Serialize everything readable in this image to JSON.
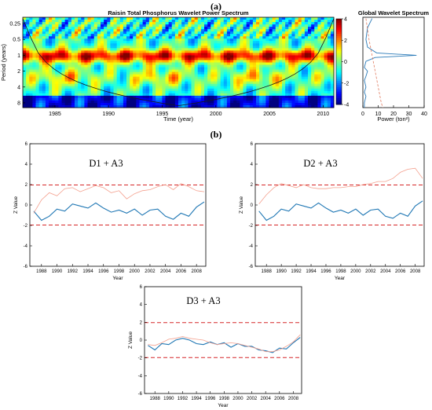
{
  "panel_labels": {
    "a": "(a)",
    "b": "(b)"
  },
  "chart_data": [
    {
      "type": "heatmap",
      "title": "Raisin Total Phosphorus Wavelet Power Spectrum",
      "xlabel": "Time (year)",
      "ylabel": "Period (years)",
      "xticks": [
        1985,
        1990,
        1995,
        2000,
        2005,
        2010
      ],
      "xlim": [
        1982,
        2011
      ],
      "yticks": [
        "0.25",
        "0.5",
        "1",
        "2",
        "4",
        "8"
      ],
      "ylim_log2": [
        -2.4,
        3.3
      ],
      "colorbar": {
        "ticks": [
          4,
          2,
          0,
          -2,
          -4
        ],
        "range": [
          -4,
          4
        ]
      }
    },
    {
      "type": "line",
      "title": "Global Wavelet Spectrum",
      "xlabel": "Power (ton²)",
      "xticks": [
        0,
        10,
        20,
        30,
        40
      ],
      "xlim": [
        0,
        40
      ],
      "series": [
        {
          "period": [
            0.2,
            0.3,
            0.5,
            0.7,
            0.9,
            1.0,
            1.1,
            1.3,
            1.7,
            2.0,
            2.5,
            3.0,
            4.0,
            5.0,
            6.0,
            8.0,
            10.0
          ],
          "power": [
            6,
            3,
            2,
            3,
            9,
            35,
            8,
            2,
            1,
            3,
            2,
            1,
            2,
            1,
            2,
            1,
            1
          ]
        },
        {
          "period": [
            0.2,
            0.5,
            1.0,
            2.0,
            4.0,
            8.0,
            10.0
          ],
          "power": [
            2,
            4,
            6,
            8,
            10,
            12,
            13
          ]
        }
      ]
    },
    {
      "type": "line",
      "title": "D1 + A3",
      "xlabel": "Year",
      "ylabel": "Z Value",
      "x": [
        1987,
        1988,
        1989,
        1990,
        1991,
        1992,
        1993,
        1994,
        1995,
        1996,
        1997,
        1998,
        1999,
        2000,
        2001,
        2002,
        2003,
        2004,
        2005,
        2006,
        2007,
        2008,
        2009
      ],
      "xticks": [
        1988,
        1990,
        1992,
        1994,
        1996,
        1998,
        2000,
        2002,
        2004,
        2006,
        2008
      ],
      "yticks": [
        6,
        4,
        2,
        0,
        -2,
        -4,
        -6
      ],
      "ylim": [
        -6,
        6
      ],
      "thresholds": [
        1.96,
        -1.96
      ],
      "series": [
        {
          "values": [
            -0.6,
            -1.5,
            -1.1,
            -0.4,
            -0.6,
            0.1,
            -0.1,
            -0.3,
            0.2,
            -0.3,
            -0.7,
            -0.5,
            -0.8,
            -0.4,
            -1.0,
            -0.5,
            -0.4,
            -1.1,
            -1.4,
            -0.8,
            -1.1,
            -0.2,
            0.3
          ]
        },
        {
          "values": [
            -0.8,
            0.5,
            1.2,
            0.9,
            1.6,
            1.7,
            1.3,
            1.6,
            1.9,
            1.7,
            1.2,
            1.4,
            0.6,
            1.1,
            1.4,
            1.5,
            1.8,
            2.0,
            1.5,
            2.1,
            1.8,
            1.4,
            1.3
          ]
        }
      ]
    },
    {
      "type": "line",
      "title": "D2 + A3",
      "xlabel": "Year",
      "ylabel": "Z Value",
      "x": [
        1987,
        1988,
        1989,
        1990,
        1991,
        1992,
        1993,
        1994,
        1995,
        1996,
        1997,
        1998,
        1999,
        2000,
        2001,
        2002,
        2003,
        2004,
        2005,
        2006,
        2007,
        2008,
        2009
      ],
      "xticks": [
        1988,
        1990,
        1992,
        1994,
        1996,
        1998,
        2000,
        2002,
        2004,
        2006,
        2008
      ],
      "yticks": [
        6,
        4,
        2,
        0,
        -2,
        -4,
        -6
      ],
      "ylim": [
        -6,
        6
      ],
      "thresholds": [
        1.96,
        -1.96
      ],
      "series": [
        {
          "values": [
            -0.6,
            -1.5,
            -1.1,
            -0.4,
            -0.6,
            0.1,
            -0.1,
            -0.3,
            0.2,
            -0.3,
            -0.7,
            -0.5,
            -0.8,
            -0.4,
            -1.0,
            -0.5,
            -0.4,
            -1.1,
            -1.3,
            -0.8,
            -1.1,
            -0.1,
            0.4
          ]
        },
        {
          "values": [
            0.1,
            1.0,
            1.7,
            2.1,
            1.9,
            1.7,
            2.0,
            1.7,
            1.6,
            1.6,
            1.7,
            1.7,
            1.8,
            1.8,
            2.0,
            2.1,
            2.3,
            2.3,
            2.6,
            3.2,
            3.5,
            3.6,
            2.6
          ]
        }
      ]
    },
    {
      "type": "line",
      "title": "D3 + A3",
      "xlabel": "Year",
      "ylabel": "Z Value",
      "x": [
        1987,
        1988,
        1989,
        1990,
        1991,
        1992,
        1993,
        1994,
        1995,
        1996,
        1997,
        1998,
        1999,
        2000,
        2001,
        2002,
        2003,
        2004,
        2005,
        2006,
        2007,
        2008,
        2009
      ],
      "xticks": [
        1988,
        1990,
        1992,
        1994,
        1996,
        1998,
        2000,
        2002,
        2004,
        2006,
        2008
      ],
      "yticks": [
        6,
        4,
        2,
        0,
        -2,
        -4,
        -6
      ],
      "ylim": [
        -6,
        6
      ],
      "thresholds": [
        1.96,
        -1.96
      ],
      "series": [
        {
          "values": [
            -0.6,
            -1.1,
            -0.4,
            -0.5,
            0.0,
            0.2,
            0.0,
            -0.4,
            -0.5,
            -0.2,
            -0.5,
            -0.3,
            -0.8,
            -0.4,
            -0.7,
            -0.7,
            -1.1,
            -1.2,
            -1.4,
            -0.9,
            -1.0,
            -0.3,
            0.3
          ]
        },
        {
          "values": [
            -0.5,
            -0.6,
            -0.3,
            0.1,
            0.2,
            0.4,
            0.2,
            0.1,
            0.0,
            -0.3,
            -0.5,
            -0.4,
            -0.3,
            -0.4,
            -0.6,
            -0.8,
            -1.0,
            -1.3,
            -1.3,
            -1.1,
            -0.7,
            -0.2,
            0.6
          ]
        }
      ]
    }
  ]
}
